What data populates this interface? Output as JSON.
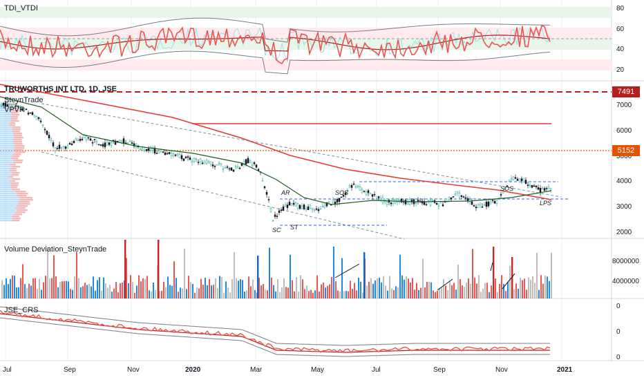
{
  "panes": {
    "tdi": {
      "title": "TDI_VTDI",
      "ticks": [
        "80",
        "60",
        "40",
        "20"
      ]
    },
    "price": {
      "symbol": "TRUWORTHS INT LTD, 1D, JSE",
      "overlay1": "SteynTrade",
      "overlay2": "VPVR",
      "ticks": [
        "7000",
        "6000",
        "5000",
        "4000",
        "3000",
        "2000"
      ],
      "badges": [
        {
          "value": "7491",
          "color": "#b71c1c"
        },
        {
          "value": "5152",
          "color": "#e65100"
        }
      ],
      "annotations": [
        "SC",
        "ST",
        "AR",
        "SOS",
        "SOS",
        "LPS"
      ]
    },
    "volume": {
      "title": "Volume Deviation_SteynTrade",
      "ticks": [
        "8000000",
        "4000000"
      ]
    },
    "crs": {
      "title": "JSE_CRS",
      "ticks": [
        "0",
        "0",
        "0"
      ]
    }
  },
  "time_axis": [
    "Jul",
    "Sep",
    "Nov",
    "2020",
    "Mar",
    "May",
    "Jul",
    "Sep",
    "Nov",
    "2021"
  ],
  "colors": {
    "up": "#2962ff",
    "down": "#ef5350",
    "ma_red": "#e53935",
    "ma_dark": "#1b5e20",
    "grid": "#e0e3eb"
  }
}
